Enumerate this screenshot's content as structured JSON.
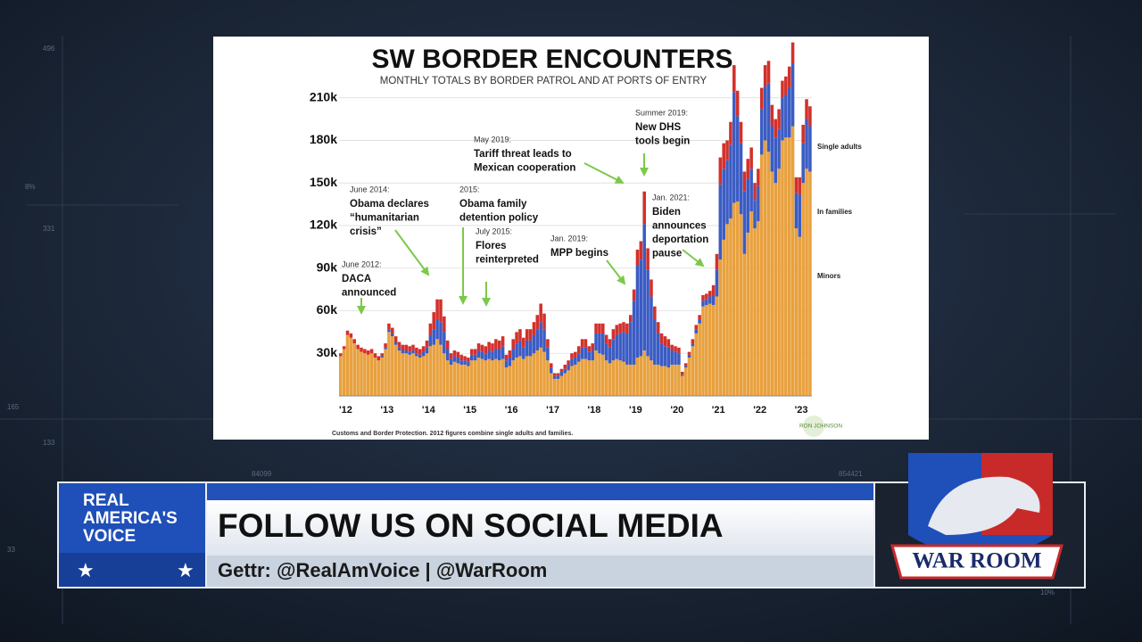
{
  "chart_data": {
    "type": "bar",
    "stacked": true,
    "title": "SW BORDER ENCOUNTERS",
    "subtitle": "MONTHLY TOTALS BY BORDER PATROL AND AT PORTS OF ENTRY",
    "categories": [
      "'12",
      null,
      null,
      null,
      null,
      null,
      null,
      null,
      null,
      null,
      null,
      null,
      "'13",
      null,
      null,
      null,
      null,
      null,
      null,
      null,
      null,
      null,
      null,
      null,
      "'14",
      null,
      null,
      null,
      null,
      null,
      null,
      null,
      null,
      null,
      null,
      null,
      "'15",
      null,
      null,
      null,
      null,
      null,
      null,
      null,
      null,
      null,
      null,
      null,
      "'16",
      null,
      null,
      null,
      null,
      null,
      null,
      null,
      null,
      null,
      null,
      null,
      "'17",
      null,
      null,
      null,
      null,
      null,
      null,
      null,
      null,
      null,
      null,
      null,
      "'18",
      null,
      null,
      null,
      null,
      null,
      null,
      null,
      null,
      null,
      null,
      null,
      "'19",
      null,
      null,
      null,
      null,
      null,
      null,
      null,
      null,
      null,
      null,
      null,
      "'20",
      null,
      null,
      null,
      null,
      null,
      null,
      null,
      null,
      null,
      null,
      null,
      "'21",
      null,
      null,
      null,
      null,
      null,
      null,
      null,
      null,
      null,
      null,
      null,
      "'22",
      null,
      null,
      null,
      null,
      null,
      null,
      null,
      null,
      null,
      null,
      null,
      "'23",
      null,
      null,
      null,
      null
    ],
    "series": [
      {
        "name": "Single adults",
        "color": "#e8a13f",
        "values": [
          28,
          33,
          43,
          41,
          37,
          33,
          31,
          30,
          29,
          30,
          27,
          25,
          27,
          33,
          45,
          42,
          36,
          32,
          30,
          30,
          29,
          30,
          28,
          27,
          28,
          30,
          35,
          36,
          40,
          36,
          30,
          25,
          22,
          24,
          23,
          22,
          22,
          21,
          25,
          25,
          27,
          26,
          25,
          26,
          25,
          26,
          25,
          26,
          20,
          21,
          25,
          27,
          28,
          26,
          28,
          28,
          30,
          32,
          34,
          31,
          25,
          16,
          12,
          12,
          14,
          16,
          18,
          21,
          22,
          24,
          26,
          26,
          25,
          25,
          32,
          30,
          29,
          25,
          23,
          25,
          26,
          25,
          24,
          22,
          22,
          22,
          27,
          28,
          32,
          28,
          25,
          22,
          22,
          21,
          21,
          20,
          22,
          22,
          22,
          14,
          20,
          27,
          35,
          44,
          51,
          63,
          64,
          65,
          64,
          70,
          96,
          110,
          121,
          125,
          136,
          137,
          128,
          100,
          115,
          130,
          118,
          123,
          170,
          180,
          172,
          158,
          150,
          160,
          180,
          182,
          182,
          190,
          118,
          112,
          150,
          160,
          158
        ]
      },
      {
        "name": "In families",
        "color": "#3b5cc4",
        "values": [
          0,
          0,
          0,
          0,
          0,
          0,
          0,
          0,
          0,
          0,
          0,
          0,
          1,
          1,
          2,
          2,
          2,
          2,
          2,
          2,
          2,
          2,
          2,
          2,
          3,
          4,
          8,
          11,
          14,
          16,
          15,
          8,
          4,
          4,
          4,
          3,
          3,
          3,
          4,
          4,
          5,
          5,
          5,
          6,
          6,
          7,
          8,
          9,
          5,
          6,
          8,
          10,
          11,
          8,
          11,
          11,
          13,
          15,
          18,
          16,
          9,
          4,
          2,
          2,
          3,
          3,
          4,
          5,
          5,
          6,
          8,
          8,
          6,
          7,
          12,
          14,
          15,
          12,
          11,
          15,
          17,
          19,
          21,
          22,
          30,
          45,
          65,
          68,
          89,
          61,
          45,
          32,
          22,
          16,
          14,
          14,
          10,
          9,
          8,
          1,
          1,
          2,
          2,
          3,
          3,
          4,
          4,
          5,
          7,
          19,
          53,
          50,
          45,
          52,
          78,
          60,
          50,
          44,
          38,
          30,
          20,
          25,
          32,
          38,
          48,
          32,
          32,
          28,
          30,
          30,
          35,
          44,
          25,
          30,
          28,
          35,
          32
        ]
      },
      {
        "name": "Minors",
        "color": "#d3302b",
        "values": [
          2,
          2,
          3,
          3,
          3,
          3,
          3,
          3,
          3,
          3,
          3,
          3,
          2,
          3,
          4,
          4,
          4,
          4,
          4,
          4,
          4,
          4,
          4,
          4,
          4,
          5,
          8,
          12,
          14,
          16,
          11,
          6,
          4,
          4,
          4,
          4,
          3,
          3,
          4,
          4,
          5,
          5,
          5,
          6,
          6,
          7,
          6,
          7,
          4,
          5,
          7,
          8,
          8,
          7,
          8,
          8,
          9,
          10,
          13,
          11,
          6,
          3,
          2,
          2,
          2,
          3,
          3,
          4,
          4,
          5,
          6,
          6,
          4,
          5,
          7,
          7,
          7,
          6,
          6,
          7,
          7,
          7,
          7,
          7,
          5,
          8,
          11,
          13,
          23,
          15,
          12,
          9,
          8,
          7,
          7,
          6,
          4,
          4,
          4,
          2,
          2,
          2,
          3,
          3,
          3,
          4,
          4,
          4,
          7,
          11,
          19,
          18,
          14,
          16,
          19,
          18,
          15,
          14,
          14,
          15,
          12,
          12,
          15,
          15,
          16,
          15,
          13,
          14,
          12,
          13,
          15,
          15,
          11,
          12,
          13,
          14,
          14
        ]
      }
    ],
    "ylim": [
      0,
      250
    ],
    "yticks": [
      {
        "value": 30,
        "label": "30k"
      },
      {
        "value": 60,
        "label": "60k"
      },
      {
        "value": 90,
        "label": "90k"
      },
      {
        "value": 120,
        "label": "120k"
      },
      {
        "value": 150,
        "label": "150k"
      },
      {
        "value": 180,
        "label": "180k"
      },
      {
        "value": 210,
        "label": "210k"
      }
    ],
    "grid": true,
    "annotations": [
      {
        "date": "June 2012:",
        "lines": [
          "DACA",
          "announced"
        ]
      },
      {
        "date": "June 2014:",
        "lines": [
          "Obama declares",
          "“humanitarian",
          "crisis”"
        ]
      },
      {
        "date": "2015:",
        "lines": [
          "Obama family",
          "detention policy"
        ]
      },
      {
        "date": "July 2015:",
        "lines": [
          "Flores",
          "reinterpreted"
        ]
      },
      {
        "date": "May 2019:",
        "lines": [
          "Tariff threat leads to",
          "Mexican cooperation"
        ]
      },
      {
        "date": "Summer 2019:",
        "lines": [
          "New DHS",
          "tools begin"
        ]
      },
      {
        "date": "Jan. 2019:",
        "lines": [
          "MPP begins"
        ]
      },
      {
        "date": "Jan. 2021:",
        "lines": [
          "Biden",
          "announces",
          "deportation",
          "pause"
        ]
      }
    ],
    "source": "Customs and Border Protection. 2012 figures combine single adults and families.",
    "logo": "RON JOHNSON"
  },
  "background_labels": [
    "496",
    "8%",
    "331",
    "165",
    "133",
    "33",
    "84099",
    "854421",
    "10%"
  ],
  "lower_third": {
    "brand": [
      "REAL",
      "AMERICA'S",
      "VOICE"
    ],
    "headline": "FOLLOW US ON SOCIAL MEDIA",
    "handles": "Gettr: @RealAmVoice | @WarRoom",
    "show_logo": "WAR ROOM"
  }
}
